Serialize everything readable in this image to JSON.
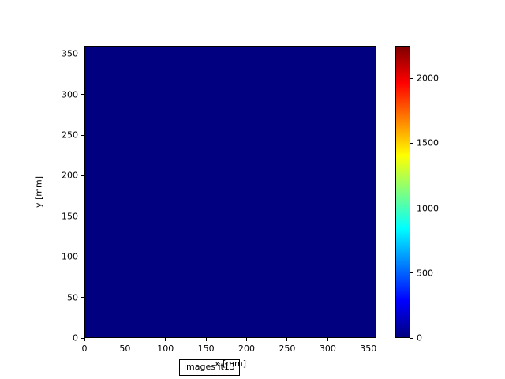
{
  "chart_data": {
    "type": "heatmap",
    "title": "",
    "xlabel": "x [mm]",
    "ylabel": "y [mm]",
    "xlim": [
      0,
      360
    ],
    "ylim": [
      0,
      360
    ],
    "x_ticks": [
      0,
      50,
      100,
      150,
      200,
      250,
      300,
      350
    ],
    "y_ticks": [
      0,
      50,
      100,
      150,
      200,
      250,
      300,
      350
    ],
    "grid": false,
    "legend": false,
    "annotation": "images it13",
    "heatmap": {
      "uniform_value": 0,
      "rendered_color": "#000080"
    },
    "colorbar": {
      "position": "right",
      "vmin": 0,
      "vmax": 2250,
      "ticks": [
        0,
        500,
        1000,
        1500,
        2000
      ],
      "colormap": "jet",
      "stops": [
        {
          "pos": 0.0,
          "color": "#000080"
        },
        {
          "pos": 0.125,
          "color": "#0000ff"
        },
        {
          "pos": 0.375,
          "color": "#00ffff"
        },
        {
          "pos": 0.625,
          "color": "#ffff00"
        },
        {
          "pos": 0.875,
          "color": "#ff0000"
        },
        {
          "pos": 1.0,
          "color": "#800000"
        }
      ]
    }
  },
  "colors": {
    "background": "#ffffff",
    "axis": "#000000",
    "text": "#000000"
  }
}
